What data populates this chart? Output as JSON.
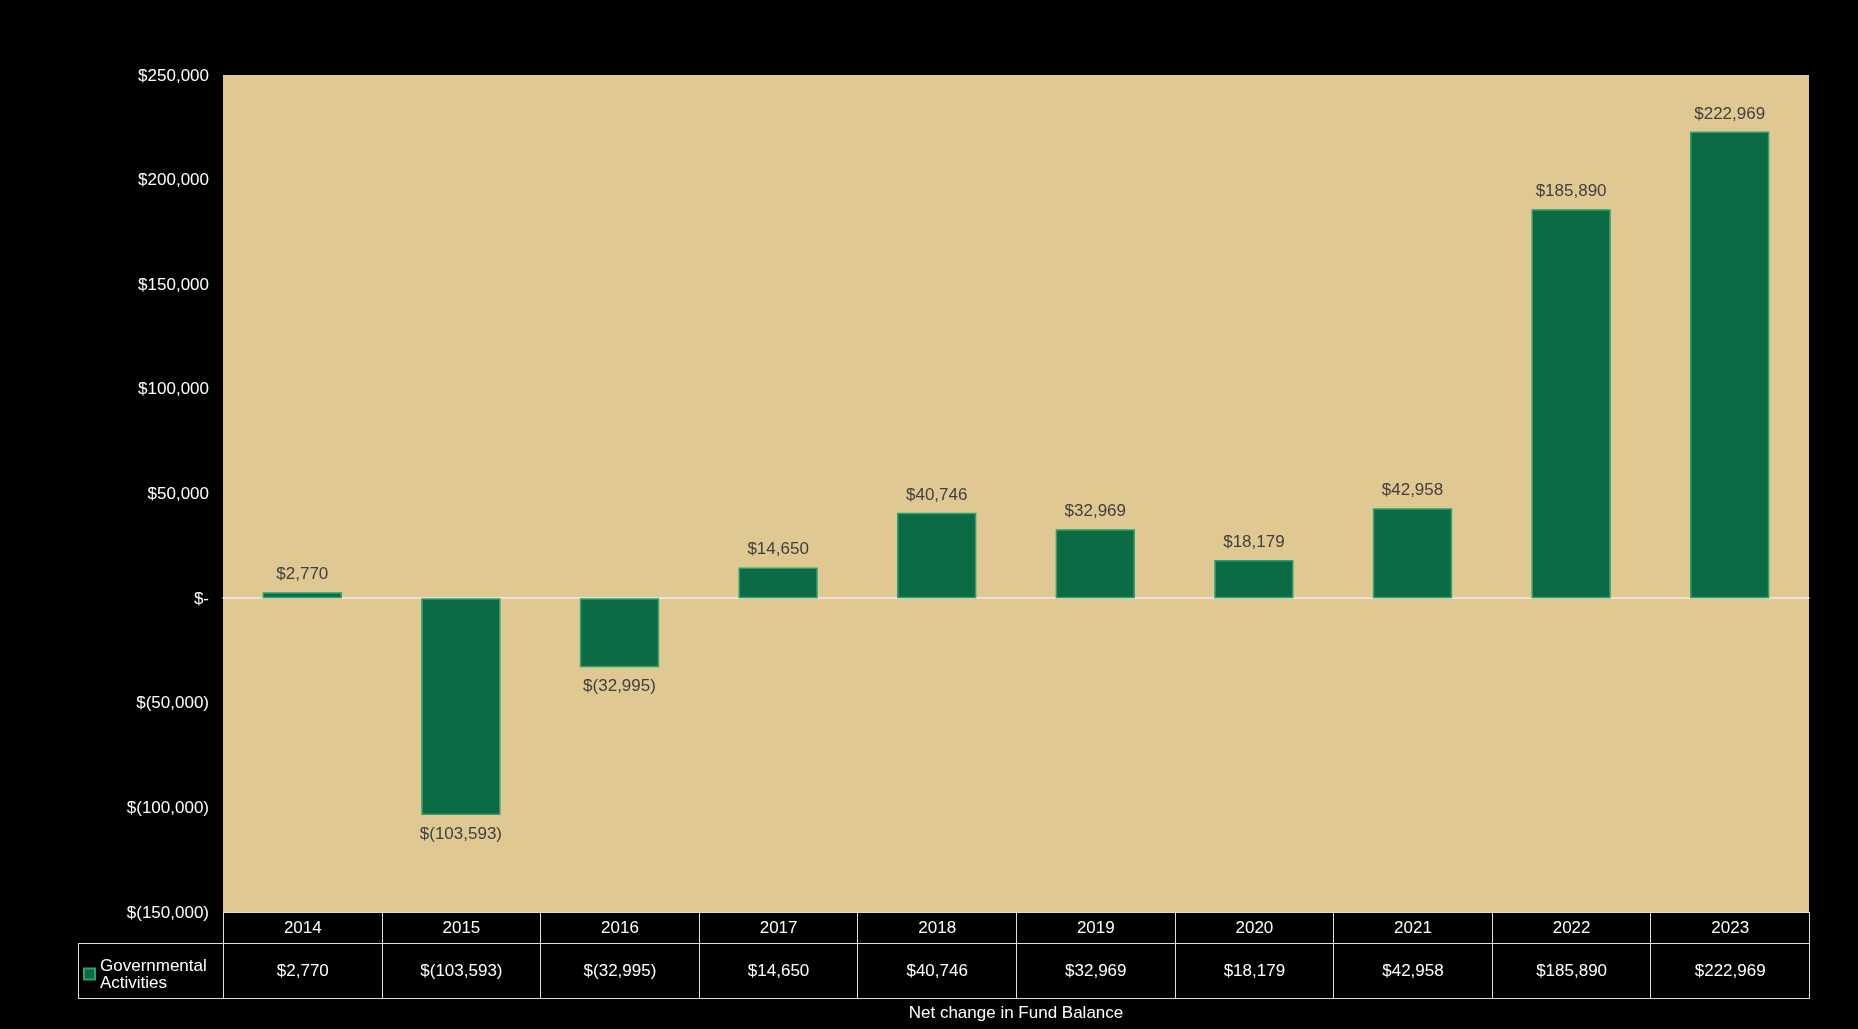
{
  "chart_data": {
    "type": "bar",
    "xlabel": "Net change in Fund Balance",
    "categories": [
      "2014",
      "2015",
      "2016",
      "2017",
      "2018",
      "2019",
      "2020",
      "2021",
      "2022",
      "2023"
    ],
    "series": [
      {
        "name": "Governmental Activities",
        "color": "#0b6b45",
        "values": [
          2770,
          -103593,
          -32995,
          14650,
          40746,
          32969,
          18179,
          42958,
          185890,
          222969
        ],
        "value_labels": [
          "$2,770",
          "$(103,593)",
          "$(32,995)",
          "$14,650",
          "$40,746",
          "$32,969",
          "$18,179",
          "$42,958",
          "$185,890",
          "$222,969"
        ]
      }
    ],
    "ylim": [
      -150000,
      250000
    ],
    "yticks": [
      {
        "value": -150000,
        "label": "$(150,000)"
      },
      {
        "value": -100000,
        "label": "$(100,000)"
      },
      {
        "value": -50000,
        "label": "$(50,000)"
      },
      {
        "value": 0,
        "label": "$-"
      },
      {
        "value": 50000,
        "label": "$50,000"
      },
      {
        "value": 100000,
        "label": "$100,000"
      },
      {
        "value": 150000,
        "label": "$150,000"
      },
      {
        "value": 200000,
        "label": "$200,000"
      },
      {
        "value": 250000,
        "label": "$250,000"
      }
    ],
    "legend": "bottom left"
  }
}
